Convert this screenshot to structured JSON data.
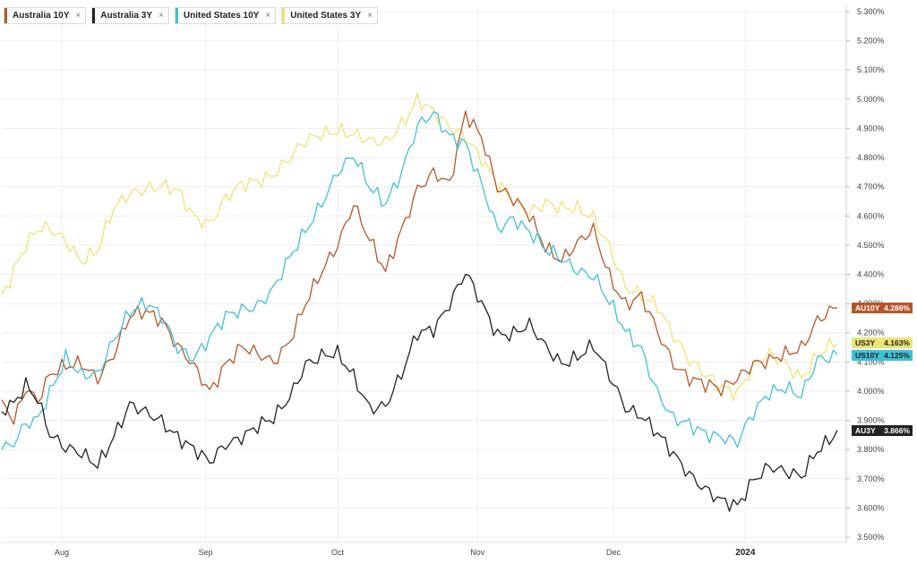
{
  "legend": {
    "items": [
      {
        "label": "Australia 10Y",
        "color": "#b5572a"
      },
      {
        "label": "Australia 3Y",
        "color": "#222222"
      },
      {
        "label": "United States 10Y",
        "color": "#3fc1d6"
      },
      {
        "label": "United States 3Y",
        "color": "#ece476"
      }
    ],
    "close_glyph": "×"
  },
  "chart_data": {
    "type": "line",
    "ylim": [
      3.5,
      5.3
    ],
    "y_ticks": [
      "3.500%",
      "3.600%",
      "3.700%",
      "3.800%",
      "3.900%",
      "4.000%",
      "4.100%",
      "4.200%",
      "4.300%",
      "4.400%",
      "4.500%",
      "4.600%",
      "4.700%",
      "4.800%",
      "4.900%",
      "5.000%",
      "5.100%",
      "5.200%",
      "5.300%"
    ],
    "x_ticks": [
      {
        "label": "Aug",
        "index": 15,
        "bold": false
      },
      {
        "label": "Sep",
        "index": 51,
        "bold": false
      },
      {
        "label": "Oct",
        "index": 84,
        "bold": false
      },
      {
        "label": "Nov",
        "index": 119,
        "bold": false
      },
      {
        "label": "Dec",
        "index": 153,
        "bold": false
      },
      {
        "label": "2024",
        "index": 186,
        "bold": true
      }
    ],
    "n_points": 210,
    "grid": true,
    "legend_position": "top-left",
    "series": [
      {
        "name": "Australia 10Y",
        "color": "#b5572a",
        "last_tag": "AU10Y",
        "last_value": "4.286%",
        "anchors": [
          [
            0,
            3.97
          ],
          [
            3,
            3.9
          ],
          [
            6,
            4.02
          ],
          [
            9,
            3.97
          ],
          [
            12,
            4.05
          ],
          [
            16,
            4.08
          ],
          [
            20,
            4.1
          ],
          [
            24,
            4.05
          ],
          [
            28,
            4.12
          ],
          [
            32,
            4.25
          ],
          [
            36,
            4.28
          ],
          [
            40,
            4.25
          ],
          [
            44,
            4.15
          ],
          [
            48,
            4.08
          ],
          [
            52,
            4.0
          ],
          [
            56,
            4.1
          ],
          [
            60,
            4.15
          ],
          [
            64,
            4.12
          ],
          [
            68,
            4.1
          ],
          [
            72,
            4.18
          ],
          [
            76,
            4.3
          ],
          [
            80,
            4.4
          ],
          [
            84,
            4.5
          ],
          [
            88,
            4.65
          ],
          [
            92,
            4.52
          ],
          [
            96,
            4.4
          ],
          [
            100,
            4.55
          ],
          [
            104,
            4.7
          ],
          [
            108,
            4.75
          ],
          [
            112,
            4.7
          ],
          [
            116,
            4.95
          ],
          [
            120,
            4.88
          ],
          [
            124,
            4.7
          ],
          [
            128,
            4.65
          ],
          [
            132,
            4.6
          ],
          [
            136,
            4.5
          ],
          [
            140,
            4.45
          ],
          [
            144,
            4.5
          ],
          [
            148,
            4.55
          ],
          [
            152,
            4.4
          ],
          [
            156,
            4.3
          ],
          [
            160,
            4.32
          ],
          [
            164,
            4.2
          ],
          [
            168,
            4.1
          ],
          [
            172,
            4.05
          ],
          [
            176,
            4.02
          ],
          [
            180,
            4.0
          ],
          [
            184,
            4.05
          ],
          [
            188,
            4.1
          ],
          [
            192,
            4.1
          ],
          [
            196,
            4.12
          ],
          [
            200,
            4.15
          ],
          [
            204,
            4.25
          ],
          [
            209,
            4.286
          ]
        ]
      },
      {
        "name": "Australia 3Y",
        "color": "#222222",
        "last_tag": "AU3Y",
        "last_value": "3.866%",
        "anchors": [
          [
            0,
            3.93
          ],
          [
            3,
            3.95
          ],
          [
            6,
            4.02
          ],
          [
            9,
            3.98
          ],
          [
            12,
            3.86
          ],
          [
            16,
            3.8
          ],
          [
            20,
            3.78
          ],
          [
            24,
            3.75
          ],
          [
            28,
            3.85
          ],
          [
            32,
            3.95
          ],
          [
            36,
            3.92
          ],
          [
            40,
            3.9
          ],
          [
            44,
            3.85
          ],
          [
            48,
            3.8
          ],
          [
            52,
            3.75
          ],
          [
            56,
            3.82
          ],
          [
            60,
            3.85
          ],
          [
            64,
            3.88
          ],
          [
            68,
            3.9
          ],
          [
            72,
            3.98
          ],
          [
            76,
            4.1
          ],
          [
            80,
            4.12
          ],
          [
            84,
            4.12
          ],
          [
            88,
            4.05
          ],
          [
            92,
            3.95
          ],
          [
            96,
            3.95
          ],
          [
            100,
            4.05
          ],
          [
            104,
            4.2
          ],
          [
            108,
            4.22
          ],
          [
            112,
            4.3
          ],
          [
            116,
            4.4
          ],
          [
            120,
            4.3
          ],
          [
            124,
            4.2
          ],
          [
            128,
            4.2
          ],
          [
            132,
            4.22
          ],
          [
            136,
            4.15
          ],
          [
            140,
            4.1
          ],
          [
            144,
            4.12
          ],
          [
            148,
            4.15
          ],
          [
            152,
            4.05
          ],
          [
            156,
            3.95
          ],
          [
            160,
            3.92
          ],
          [
            164,
            3.85
          ],
          [
            168,
            3.78
          ],
          [
            172,
            3.72
          ],
          [
            176,
            3.67
          ],
          [
            180,
            3.62
          ],
          [
            184,
            3.6
          ],
          [
            188,
            3.7
          ],
          [
            192,
            3.75
          ],
          [
            196,
            3.72
          ],
          [
            200,
            3.7
          ],
          [
            204,
            3.8
          ],
          [
            209,
            3.866
          ]
        ]
      },
      {
        "name": "United States 10Y",
        "color": "#3fc1d6",
        "last_tag": "US10Y",
        "last_value": "4.125%",
        "anchors": [
          [
            0,
            3.8
          ],
          [
            3,
            3.82
          ],
          [
            6,
            3.88
          ],
          [
            9,
            3.9
          ],
          [
            12,
            4.0
          ],
          [
            16,
            4.12
          ],
          [
            20,
            4.05
          ],
          [
            24,
            4.05
          ],
          [
            28,
            4.18
          ],
          [
            32,
            4.28
          ],
          [
            36,
            4.3
          ],
          [
            40,
            4.25
          ],
          [
            44,
            4.15
          ],
          [
            48,
            4.12
          ],
          [
            52,
            4.18
          ],
          [
            56,
            4.25
          ],
          [
            60,
            4.28
          ],
          [
            64,
            4.3
          ],
          [
            68,
            4.35
          ],
          [
            72,
            4.45
          ],
          [
            76,
            4.55
          ],
          [
            80,
            4.65
          ],
          [
            84,
            4.75
          ],
          [
            88,
            4.8
          ],
          [
            92,
            4.7
          ],
          [
            96,
            4.65
          ],
          [
            100,
            4.75
          ],
          [
            104,
            4.9
          ],
          [
            108,
            4.95
          ],
          [
            112,
            4.88
          ],
          [
            116,
            4.85
          ],
          [
            120,
            4.7
          ],
          [
            124,
            4.55
          ],
          [
            128,
            4.6
          ],
          [
            132,
            4.55
          ],
          [
            136,
            4.48
          ],
          [
            140,
            4.45
          ],
          [
            144,
            4.42
          ],
          [
            148,
            4.4
          ],
          [
            152,
            4.3
          ],
          [
            156,
            4.2
          ],
          [
            160,
            4.15
          ],
          [
            164,
            4.0
          ],
          [
            168,
            3.9
          ],
          [
            172,
            3.88
          ],
          [
            176,
            3.86
          ],
          [
            180,
            3.85
          ],
          [
            184,
            3.82
          ],
          [
            188,
            3.92
          ],
          [
            192,
            4.0
          ],
          [
            196,
            4.02
          ],
          [
            200,
            3.98
          ],
          [
            204,
            4.1
          ],
          [
            209,
            4.125
          ]
        ]
      },
      {
        "name": "United States 3Y",
        "color": "#ece476",
        "last_tag": "US3Y",
        "last_value": "4.163%",
        "anchors": [
          [
            0,
            4.33
          ],
          [
            3,
            4.42
          ],
          [
            6,
            4.5
          ],
          [
            9,
            4.55
          ],
          [
            12,
            4.55
          ],
          [
            16,
            4.52
          ],
          [
            20,
            4.45
          ],
          [
            24,
            4.48
          ],
          [
            28,
            4.62
          ],
          [
            32,
            4.68
          ],
          [
            36,
            4.7
          ],
          [
            40,
            4.7
          ],
          [
            44,
            4.68
          ],
          [
            48,
            4.6
          ],
          [
            52,
            4.58
          ],
          [
            56,
            4.66
          ],
          [
            60,
            4.7
          ],
          [
            64,
            4.72
          ],
          [
            68,
            4.75
          ],
          [
            72,
            4.8
          ],
          [
            76,
            4.85
          ],
          [
            80,
            4.88
          ],
          [
            84,
            4.9
          ],
          [
            88,
            4.88
          ],
          [
            92,
            4.85
          ],
          [
            96,
            4.85
          ],
          [
            100,
            4.92
          ],
          [
            104,
            5.0
          ],
          [
            108,
            4.95
          ],
          [
            112,
            4.9
          ],
          [
            116,
            4.88
          ],
          [
            120,
            4.8
          ],
          [
            124,
            4.7
          ],
          [
            128,
            4.65
          ],
          [
            132,
            4.62
          ],
          [
            136,
            4.65
          ],
          [
            140,
            4.62
          ],
          [
            144,
            4.62
          ],
          [
            148,
            4.6
          ],
          [
            152,
            4.5
          ],
          [
            156,
            4.35
          ],
          [
            160,
            4.32
          ],
          [
            164,
            4.3
          ],
          [
            168,
            4.2
          ],
          [
            172,
            4.1
          ],
          [
            176,
            4.05
          ],
          [
            180,
            4.02
          ],
          [
            184,
            4.0
          ],
          [
            188,
            4.08
          ],
          [
            192,
            4.12
          ],
          [
            196,
            4.1
          ],
          [
            200,
            4.05
          ],
          [
            204,
            4.12
          ],
          [
            209,
            4.163
          ]
        ]
      }
    ]
  }
}
